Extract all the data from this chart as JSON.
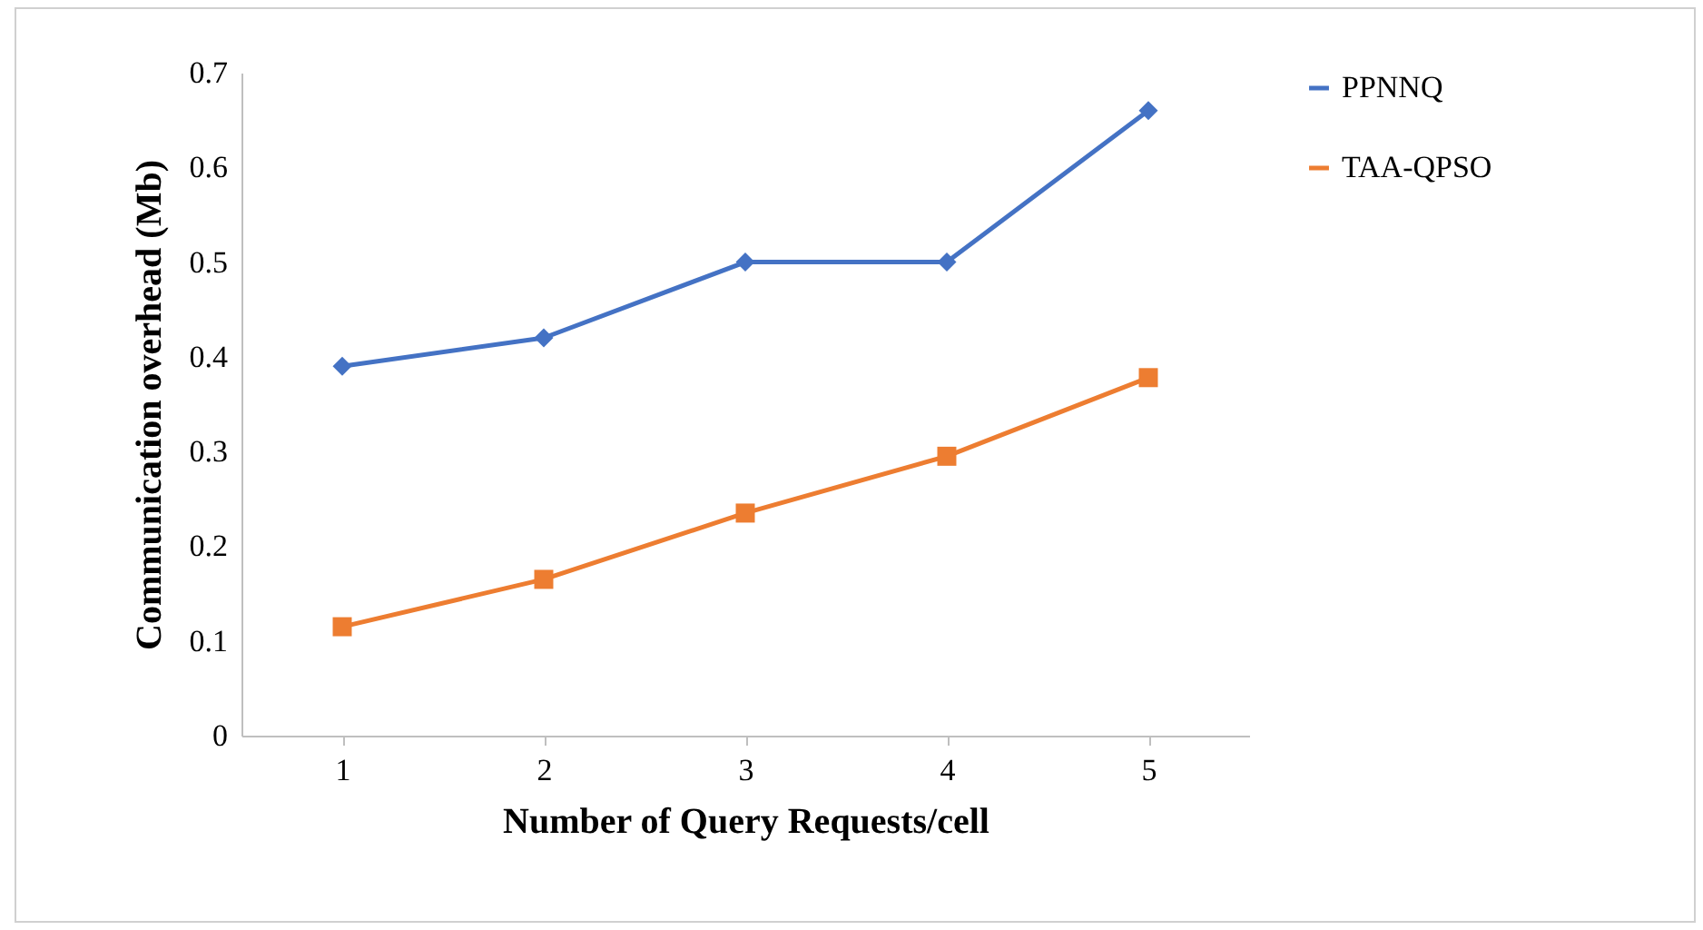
{
  "chart_data": {
    "type": "line",
    "xlabel": "Number of Query Requests/cell",
    "ylabel": "Communication overhead (Mb)",
    "categories": [
      "1",
      "2",
      "3",
      "4",
      "5"
    ],
    "series": [
      {
        "name": "PPNNQ",
        "color": "#4472c4",
        "marker": "diamond",
        "values": [
          0.39,
          0.42,
          0.5,
          0.5,
          0.66
        ]
      },
      {
        "name": "TAA-QPSO",
        "color": "#ed7d31",
        "marker": "square",
        "values": [
          0.115,
          0.165,
          0.235,
          0.295,
          0.378
        ]
      }
    ],
    "ylim": [
      0,
      0.7
    ],
    "yticks": [
      0,
      0.1,
      0.2,
      0.3,
      0.4,
      0.5,
      0.6,
      0.7
    ],
    "grid": false,
    "legend": "right",
    "line_style": "solid"
  }
}
